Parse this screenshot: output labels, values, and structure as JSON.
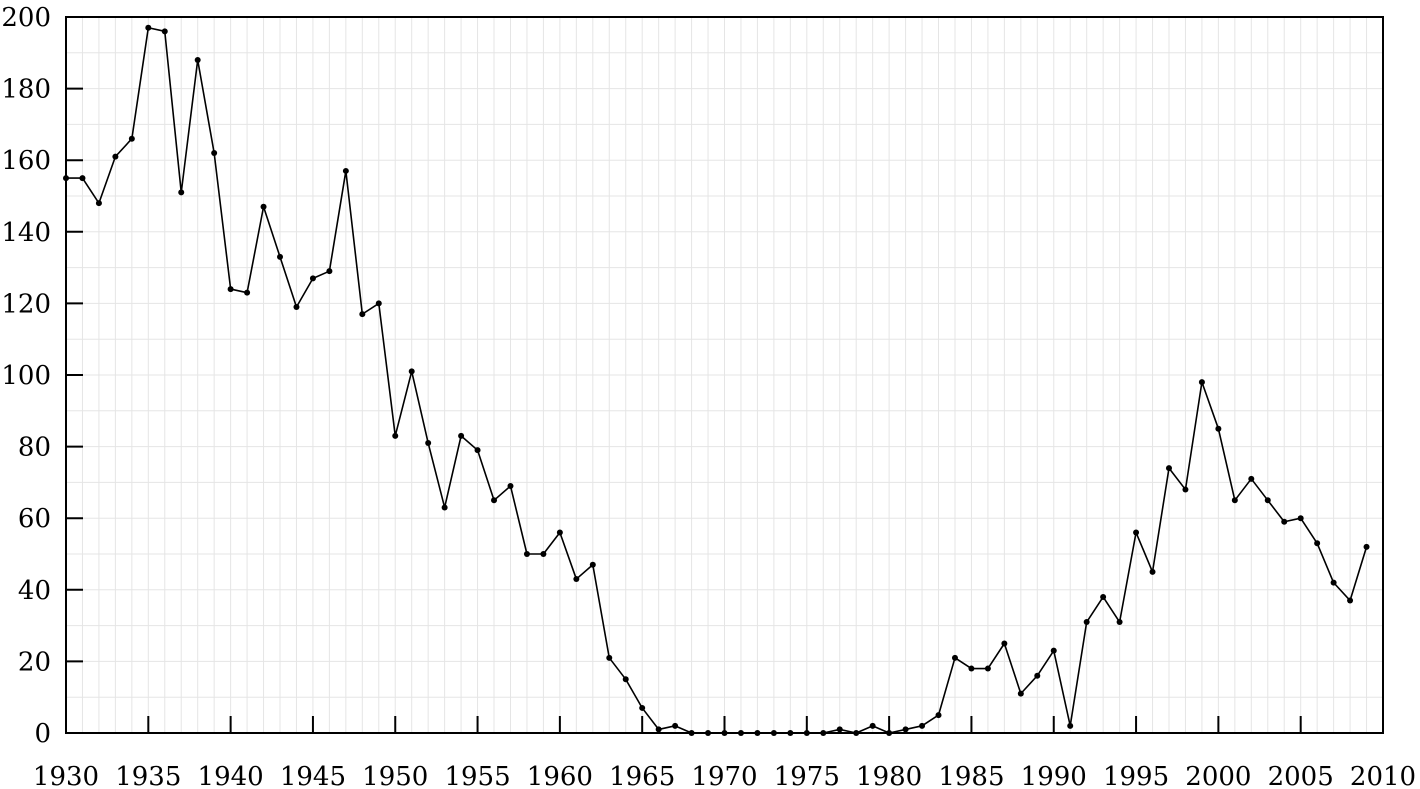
{
  "chart_data": {
    "type": "line",
    "title": "",
    "xlabel": "",
    "ylabel": "",
    "xlim": [
      1930,
      2010
    ],
    "ylim": [
      0,
      200
    ],
    "x_ticks": [
      1930,
      1935,
      1940,
      1945,
      1950,
      1955,
      1960,
      1965,
      1970,
      1975,
      1980,
      1985,
      1990,
      1995,
      2000,
      2005,
      2010
    ],
    "y_ticks": [
      0,
      20,
      40,
      60,
      80,
      100,
      120,
      140,
      160,
      180,
      200
    ],
    "x_tick_labels": [
      "1930",
      "1935",
      "1940",
      "1945",
      "1950",
      "1955",
      "1960",
      "1965",
      "1970",
      "1975",
      "1980",
      "1985",
      "1990",
      "1995",
      "2000",
      "2005",
      "2010"
    ],
    "y_tick_labels": [
      "0",
      "20",
      "40",
      "60",
      "80",
      "100",
      "120",
      "140",
      "160",
      "180",
      "200"
    ],
    "grid": true,
    "x_minor_grid_step": 1,
    "y_minor_grid_step": 10,
    "legend": false,
    "line_color": "#000000",
    "grid_color": "#e5e5e5",
    "series": [
      {
        "x": [
          1930,
          1931,
          1932,
          1933,
          1934,
          1935,
          1936,
          1937,
          1938,
          1939,
          1940,
          1941,
          1942,
          1943,
          1944,
          1945,
          1946,
          1947,
          1948,
          1949,
          1950,
          1951,
          1952,
          1953,
          1954,
          1955,
          1956,
          1957,
          1958,
          1959,
          1960,
          1961,
          1962,
          1963,
          1964,
          1965,
          1966,
          1967,
          1968,
          1969,
          1970,
          1971,
          1972,
          1973,
          1974,
          1975,
          1976,
          1977,
          1978,
          1979,
          1980,
          1981,
          1982,
          1983,
          1984,
          1985,
          1986,
          1987,
          1988,
          1989,
          1990,
          1991,
          1992,
          1993,
          1994,
          1995,
          1996,
          1997,
          1998,
          1999,
          2000,
          2001,
          2002,
          2003,
          2004,
          2005,
          2006,
          2007,
          2008,
          2009
        ],
        "y": [
          155,
          155,
          148,
          161,
          166,
          197,
          196,
          151,
          188,
          162,
          124,
          123,
          147,
          133,
          119,
          127,
          129,
          157,
          117,
          120,
          83,
          101,
          81,
          63,
          83,
          79,
          65,
          69,
          50,
          50,
          56,
          43,
          47,
          21,
          15,
          7,
          1,
          2,
          0,
          0,
          0,
          0,
          0,
          0,
          0,
          0,
          0,
          1,
          0,
          2,
          0,
          1,
          2,
          5,
          21,
          18,
          18,
          25,
          11,
          16,
          23,
          2,
          31,
          38,
          31,
          56,
          45,
          74,
          68,
          98,
          85,
          65,
          71,
          65,
          59,
          60,
          53,
          42,
          37,
          52
        ]
      }
    ]
  }
}
